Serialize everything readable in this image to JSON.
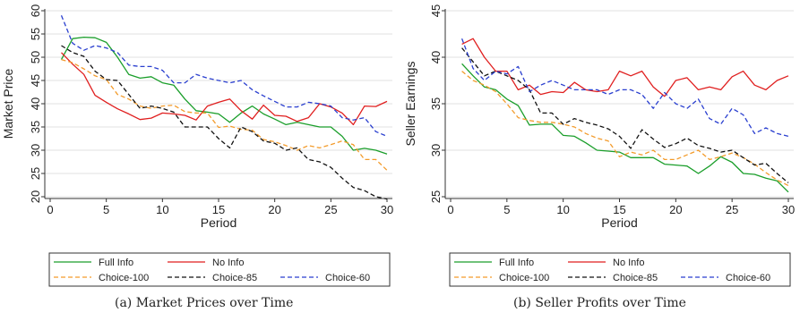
{
  "charts": [
    {
      "caption": "(a) Market Prices over Time",
      "chart_data": {
        "type": "line",
        "xlabel": "Period",
        "ylabel": "Market Price",
        "xlim": [
          0,
          30
        ],
        "ylim": [
          20,
          60
        ],
        "xticks": [
          0,
          5,
          10,
          15,
          20,
          25,
          30
        ],
        "yticks": [
          20,
          25,
          30,
          35,
          40,
          45,
          50,
          55,
          60
        ],
        "grid": "horizontal",
        "legend_position": "bottom",
        "x": [
          1,
          2,
          3,
          4,
          5,
          6,
          7,
          8,
          9,
          10,
          11,
          12,
          13,
          14,
          15,
          16,
          17,
          18,
          19,
          20,
          21,
          22,
          23,
          24,
          25,
          26,
          27,
          28,
          29,
          30
        ],
        "series": [
          {
            "name": "Full Info",
            "color": "#1a9e2a",
            "dash": "solid",
            "values": [
              49.5,
              54,
              54.3,
              54.2,
              53.2,
              50,
              46.3,
              45.5,
              45.8,
              44.5,
              44,
              41,
              38.5,
              38.2,
              37.8,
              36,
              38,
              39.5,
              37.8,
              36.7,
              35.5,
              36,
              35.5,
              35,
              35,
              33,
              30,
              30.4,
              30,
              29.2
            ]
          },
          {
            "name": "No Info",
            "color": "#e01f1f",
            "dash": "solid",
            "values": [
              51,
              48.5,
              46.3,
              41.8,
              40.3,
              38.9,
              37.8,
              36.6,
              36.9,
              38,
              37.8,
              37.5,
              36.5,
              39.5,
              40.3,
              41,
              38.5,
              36.7,
              39.7,
              37.5,
              37.3,
              36.2,
              37,
              40,
              39.3,
              38,
              35.5,
              39.5,
              39.4,
              40.5
            ]
          },
          {
            "name": "Choice-100",
            "color": "#f39b2b",
            "dash": "dash",
            "values": [
              49.5,
              48.8,
              47.5,
              46,
              45.2,
              42,
              41,
              39.5,
              39,
              39.5,
              39.7,
              38.3,
              38,
              38,
              34.9,
              35.2,
              34.5,
              34.3,
              32.3,
              31.8,
              31,
              30,
              31,
              30.5,
              31.2,
              32,
              31.2,
              28,
              28,
              25.7
            ]
          },
          {
            "name": "Choice-85",
            "color": "#111111",
            "dash": "dash",
            "values": [
              52.5,
              51,
              50.2,
              47,
              45.2,
              45,
              42,
              39,
              39.5,
              39,
              38.2,
              35,
              35,
              35,
              32.5,
              30.5,
              35,
              34,
              32,
              31.5,
              30,
              30.5,
              28,
              27.5,
              26.3,
              24,
              22,
              21.3,
              20,
              19.5
            ]
          },
          {
            "name": "Choice-60",
            "color": "#2a3fcf",
            "dash": "dash",
            "values": [
              59,
              53,
              51.5,
              52.5,
              52,
              51,
              48.3,
              48,
              48,
              47.2,
              44.5,
              44.5,
              46.3,
              45.5,
              45,
              44.5,
              45,
              43,
              41.7,
              40.5,
              39.3,
              39.3,
              40.3,
              40,
              39.5,
              37,
              36.5,
              37,
              34,
              33
            ]
          }
        ]
      }
    },
    {
      "caption": "(b) Seller Profits over Time",
      "chart_data": {
        "type": "line",
        "xlabel": "Period",
        "ylabel": "Seller Earnings",
        "xlim": [
          0,
          30
        ],
        "ylim": [
          25,
          45
        ],
        "xticks": [
          0,
          5,
          10,
          15,
          20,
          25,
          30
        ],
        "yticks": [
          25,
          30,
          35,
          40,
          45
        ],
        "grid": "horizontal",
        "legend_position": "bottom",
        "x": [
          1,
          2,
          3,
          4,
          5,
          6,
          7,
          8,
          9,
          10,
          11,
          12,
          13,
          14,
          15,
          16,
          17,
          18,
          19,
          20,
          21,
          22,
          23,
          24,
          25,
          26,
          27,
          28,
          29,
          30
        ],
        "series": [
          {
            "name": "Full Info",
            "color": "#1a9e2a",
            "dash": "solid",
            "values": [
              39.3,
              38,
              36.8,
              36.5,
              35.5,
              34.8,
              32.7,
              32.8,
              32.8,
              31.6,
              31.5,
              30.8,
              30,
              29.9,
              29.8,
              29.2,
              29.2,
              29.2,
              28.5,
              28.4,
              28.3,
              27.5,
              28.3,
              29.3,
              28.7,
              27.5,
              27.4,
              27,
              26.7,
              25.5
            ]
          },
          {
            "name": "No Info",
            "color": "#e01f1f",
            "dash": "solid",
            "values": [
              41.4,
              42,
              40,
              38.5,
              38.5,
              36.5,
              37,
              36,
              36.3,
              36.2,
              37.3,
              36.5,
              36.3,
              36.5,
              38.5,
              38,
              38.5,
              36.8,
              35.8,
              37.5,
              37.8,
              36.5,
              36.8,
              36.5,
              37.9,
              38.5,
              37,
              36.5,
              37.5,
              38
            ]
          },
          {
            "name": "Choice-100",
            "color": "#f39b2b",
            "dash": "dash",
            "values": [
              38.5,
              37.5,
              37,
              36.3,
              35,
              33.5,
              33.2,
              33,
              33,
              32.8,
              32.5,
              31.8,
              31.3,
              31,
              29.3,
              29.8,
              29.5,
              30,
              29,
              29,
              29.5,
              30,
              29,
              29.3,
              29.7,
              29.2,
              28.5,
              27.6,
              26.8,
              26.2
            ]
          },
          {
            "name": "Choice-85",
            "color": "#111111",
            "dash": "dash",
            "values": [
              41,
              39.5,
              38,
              38.5,
              38,
              37.5,
              36.5,
              34,
              34,
              32.8,
              33.4,
              33,
              32.7,
              32.3,
              31.5,
              30.2,
              32.2,
              31.2,
              30.3,
              30.7,
              31.3,
              30.5,
              30.2,
              29.8,
              30,
              29.2,
              28.4,
              28.6,
              27.5,
              26.5
            ]
          },
          {
            "name": "Choice-60",
            "color": "#2a3fcf",
            "dash": "dash",
            "values": [
              42,
              38.8,
              37.5,
              38.5,
              38.2,
              39,
              36.3,
              37,
              37.5,
              37,
              36.5,
              36.5,
              36.5,
              36,
              36.5,
              36.5,
              36,
              34.5,
              36.2,
              35,
              34.5,
              35.5,
              33.4,
              32.8,
              34.5,
              33.8,
              31.8,
              32.4,
              31.8,
              31.5
            ]
          }
        ]
      }
    }
  ]
}
